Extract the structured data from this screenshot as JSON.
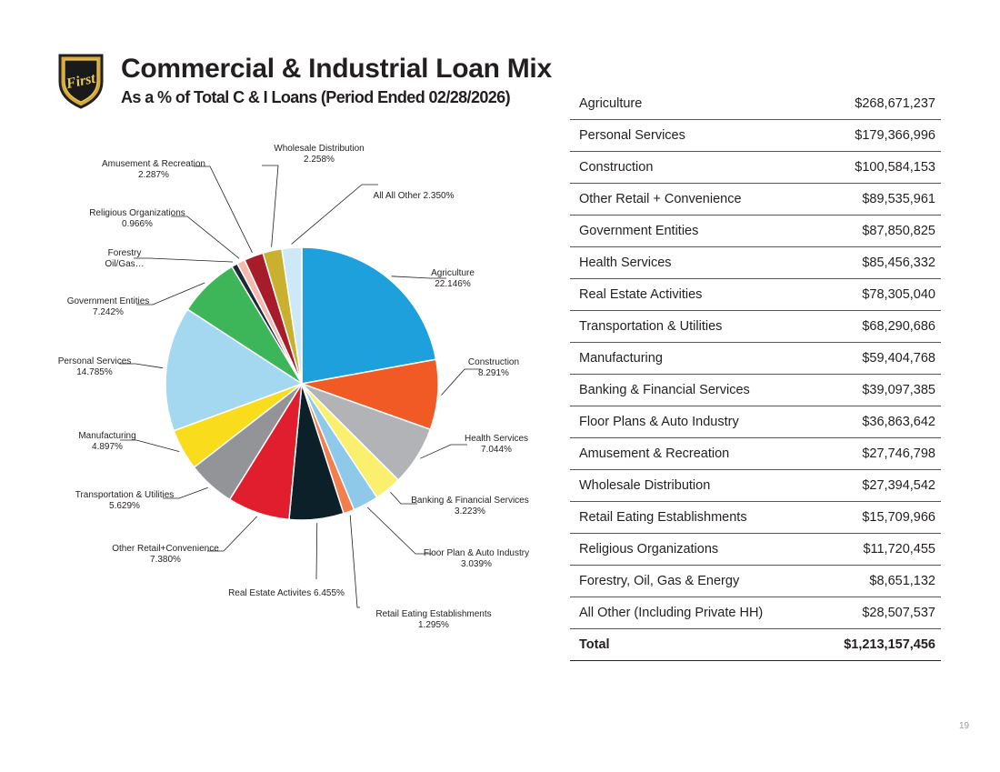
{
  "header": {
    "logo_text": "First",
    "title": "Commercial & Industrial Loan Mix",
    "subtitle": "As a % of Total C & I Loans (Period Ended 02/28/2026)"
  },
  "chart_data": {
    "type": "pie",
    "slices": [
      {
        "label": "Agriculture",
        "value": 22.146,
        "pct_text": "22.146%",
        "color": "#1ea0dc"
      },
      {
        "label": "Construction",
        "value": 8.291,
        "pct_text": "8.291%",
        "color": "#f15a24"
      },
      {
        "label": "Health Services",
        "value": 7.044,
        "pct_text": "7.044%",
        "color": "#b1b3b6"
      },
      {
        "label": "Banking & Financial Services",
        "value": 3.223,
        "pct_text": "3.223%",
        "color": "#fbef6e"
      },
      {
        "label": "Floor Plan & Auto Industry",
        "value": 3.039,
        "pct_text": "3.039%",
        "color": "#8ec9ea"
      },
      {
        "label": "Retail Eating Establishments",
        "value": 1.295,
        "pct_text": "1.295%",
        "color": "#f37f4f"
      },
      {
        "label": "Real Estate Activites",
        "value": 6.455,
        "pct_text": "Real Estate Activites 6.455%",
        "color": "#0c2029"
      },
      {
        "label": "Other Retail+Convenience",
        "value": 7.38,
        "pct_text": "7.380%",
        "color": "#e01e2d"
      },
      {
        "label": "Transportation & Utilities",
        "value": 5.629,
        "pct_text": "5.629%",
        "color": "#929497"
      },
      {
        "label": "Manufacturing",
        "value": 4.897,
        "pct_text": "4.897%",
        "color": "#f9dc1b"
      },
      {
        "label": "Personal Services",
        "value": 14.785,
        "pct_text": "14.785%",
        "color": "#a4d8f0"
      },
      {
        "label": "Government Entities",
        "value": 7.242,
        "pct_text": "7.242%",
        "color": "#3db65a"
      },
      {
        "label": "Forestry Oil/Gas…",
        "value": 0.713,
        "pct_text": "",
        "color": "#1c2833"
      },
      {
        "label": "Religious Organizations",
        "value": 0.966,
        "pct_text": "0.966%",
        "color": "#f6b9ae"
      },
      {
        "label": "Amusement & Recreation",
        "value": 2.287,
        "pct_text": "2.287%",
        "color": "#a61c2a"
      },
      {
        "label": "Wholesale Distribution",
        "value": 2.258,
        "pct_text": "2.258%",
        "color": "#c9b12f"
      },
      {
        "label": "All All Other",
        "value": 2.35,
        "pct_text": "All All Other 2.350%",
        "color": "#cde8f6"
      }
    ]
  },
  "table": {
    "rows": [
      {
        "category": "Agriculture",
        "amount": "$268,671,237"
      },
      {
        "category": "Personal Services",
        "amount": "$179,366,996"
      },
      {
        "category": "Construction",
        "amount": "$100,584,153"
      },
      {
        "category": "Other Retail + Convenience",
        "amount": "$89,535,961"
      },
      {
        "category": "Government Entities",
        "amount": "$87,850,825"
      },
      {
        "category": "Health Services",
        "amount": "$85,456,332"
      },
      {
        "category": "Real Estate Activities",
        "amount": "$78,305,040"
      },
      {
        "category": "Transportation & Utilities",
        "amount": "$68,290,686"
      },
      {
        "category": "Manufacturing",
        "amount": "$59,404,768"
      },
      {
        "category": "Banking & Financial Services",
        "amount": "$39,097,385"
      },
      {
        "category": "Floor Plans & Auto Industry",
        "amount": "$36,863,642"
      },
      {
        "category": "Amusement & Recreation",
        "amount": "$27,746,798"
      },
      {
        "category": "Wholesale Distribution",
        "amount": "$27,394,542"
      },
      {
        "category": "Retail Eating Establishments",
        "amount": "$15,709,966"
      },
      {
        "category": "Religious Organizations",
        "amount": "$11,720,455"
      },
      {
        "category": "Forestry, Oil, Gas & Energy",
        "amount": "$8,651,132"
      },
      {
        "category": "All Other (Including Private HH)",
        "amount": "$28,507,537"
      }
    ],
    "total": {
      "category": "Total",
      "amount": "$1,213,157,456"
    }
  },
  "footer": {
    "page_number": "19"
  }
}
